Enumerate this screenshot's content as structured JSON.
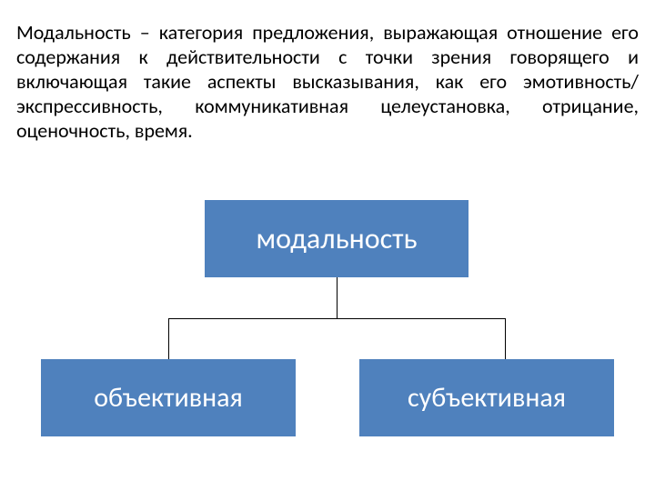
{
  "definition": {
    "text": "Модальность – категория предложения, выражающая отношение его содержания к действительности с точки зрения говорящего и включающая такие аспекты высказывания, как его эмотивность/экспрессивность, коммуникативная целеустановка, отрицание, оценочность, время.",
    "fontsize": 22,
    "lineheight": 27,
    "color": "#000000"
  },
  "diagram": {
    "type": "tree",
    "background_color": "#ffffff",
    "node_fill": "#4f81bd",
    "node_text_color": "#ffffff",
    "connector_color": "#000000",
    "connector_width": 1,
    "root": {
      "label": "модальность",
      "fontsize": 32
    },
    "children": [
      {
        "label": "объективная",
        "fontsize": 30
      },
      {
        "label": "субъективная",
        "fontsize": 30
      }
    ]
  }
}
